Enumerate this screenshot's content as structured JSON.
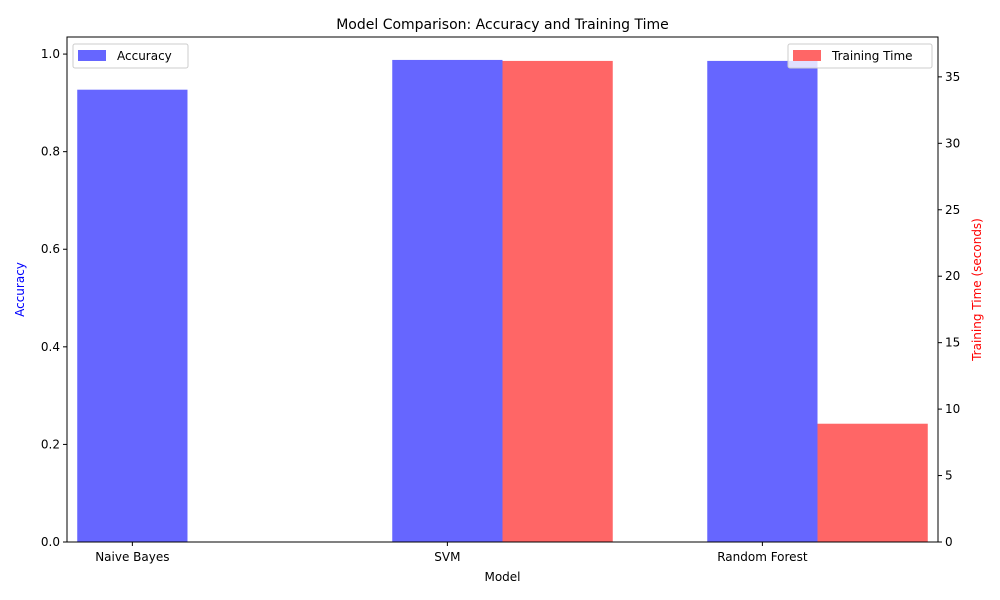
{
  "chart_data": {
    "type": "bar",
    "title": "Model Comparison: Accuracy and Training Time",
    "xlabel": "Model",
    "categories": [
      "Naive Bayes",
      "SVM",
      "Random Forest"
    ],
    "series": [
      {
        "name": "Accuracy",
        "axis": "left",
        "color": "#6666ff",
        "values": [
          0.927,
          0.988,
          0.986
        ]
      },
      {
        "name": "Training Time",
        "axis": "right",
        "color": "#ff6666",
        "values": [
          0.0,
          36.2,
          8.9
        ]
      }
    ],
    "left_axis": {
      "label": "Accuracy",
      "label_color": "#0000ff",
      "ylim": [
        0,
        1.035
      ],
      "ticks": [
        "0.0",
        "0.2",
        "0.4",
        "0.6",
        "0.8",
        "1.0"
      ]
    },
    "right_axis": {
      "label": "Training Time (seconds)",
      "label_color": "#ff0000",
      "ylim": [
        0,
        38.0
      ],
      "ticks": [
        "0",
        "5",
        "10",
        "15",
        "20",
        "25",
        "30",
        "35"
      ]
    },
    "legends": [
      {
        "entry": "Accuracy",
        "placement": "top-left"
      },
      {
        "entry": "Training Time",
        "placement": "top-right"
      }
    ],
    "grid": false
  }
}
